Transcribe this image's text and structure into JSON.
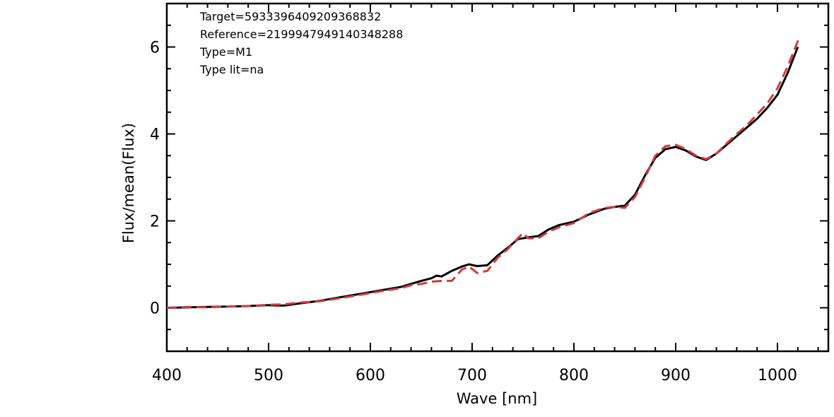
{
  "chart_data": {
    "type": "line",
    "xlabel": "Wave [nm]",
    "ylabel": "Flux/mean(Flux)",
    "xlim": [
      400,
      1050
    ],
    "ylim": [
      -1,
      7
    ],
    "xticks": [
      400,
      500,
      600,
      700,
      800,
      900,
      1000
    ],
    "yticks": [
      0,
      2,
      4,
      6
    ],
    "annotations": [
      "Target=5933396409209368832",
      "Reference=2199947949140348288",
      "Type=M1",
      "Type lit=na"
    ],
    "series": [
      {
        "color": "#000000",
        "style": "solid",
        "x": [
          400,
          420,
          440,
          460,
          480,
          500,
          515,
          530,
          550,
          570,
          590,
          610,
          630,
          640,
          650,
          660,
          665,
          670,
          680,
          690,
          697,
          705,
          715,
          725,
          735,
          745,
          755,
          765,
          775,
          785,
          800,
          815,
          830,
          840,
          850,
          860,
          870,
          880,
          890,
          900,
          910,
          920,
          930,
          940,
          950,
          960,
          970,
          980,
          990,
          1000,
          1010,
          1020
        ],
        "y": [
          0.0,
          0.01,
          0.02,
          0.03,
          0.04,
          0.06,
          0.05,
          0.1,
          0.16,
          0.24,
          0.32,
          0.4,
          0.48,
          0.55,
          0.62,
          0.68,
          0.74,
          0.72,
          0.85,
          0.95,
          1.0,
          0.96,
          0.98,
          1.2,
          1.38,
          1.58,
          1.62,
          1.65,
          1.8,
          1.9,
          1.98,
          2.15,
          2.28,
          2.32,
          2.35,
          2.6,
          3.05,
          3.45,
          3.65,
          3.7,
          3.62,
          3.48,
          3.4,
          3.55,
          3.75,
          3.95,
          4.15,
          4.35,
          4.6,
          4.9,
          5.4,
          6.0
        ]
      },
      {
        "color": "#d23a43",
        "style": "dashed",
        "x": [
          400,
          420,
          440,
          460,
          480,
          500,
          515,
          530,
          550,
          570,
          590,
          610,
          630,
          640,
          650,
          660,
          670,
          680,
          690,
          697,
          705,
          715,
          725,
          735,
          745,
          750,
          755,
          765,
          775,
          785,
          800,
          815,
          830,
          840,
          850,
          860,
          870,
          880,
          890,
          900,
          910,
          920,
          930,
          940,
          950,
          960,
          970,
          980,
          990,
          1000,
          1010,
          1022
        ],
        "y": [
          0.0,
          0.02,
          0.01,
          0.03,
          0.04,
          0.07,
          0.08,
          0.12,
          0.15,
          0.22,
          0.3,
          0.38,
          0.45,
          0.52,
          0.55,
          0.6,
          0.62,
          0.62,
          0.88,
          0.95,
          0.8,
          0.85,
          1.15,
          1.35,
          1.6,
          1.72,
          1.6,
          1.6,
          1.75,
          1.85,
          1.95,
          2.18,
          2.3,
          2.32,
          2.3,
          2.55,
          3.0,
          3.5,
          3.72,
          3.75,
          3.65,
          3.5,
          3.42,
          3.55,
          3.78,
          4.0,
          4.2,
          4.45,
          4.7,
          5.05,
          5.55,
          6.25
        ]
      }
    ]
  }
}
